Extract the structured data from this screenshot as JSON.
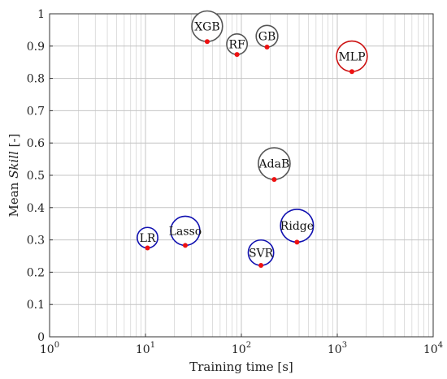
{
  "chart_data": {
    "type": "scatter",
    "title": "",
    "xlabel": "Training time [s]",
    "ylabel_prefix": "Mean ",
    "ylabel_italic": "Skill",
    "ylabel_suffix": " [-]",
    "xscale": "log",
    "xlim": [
      1,
      10000
    ],
    "ylim": [
      0,
      1
    ],
    "grid": true,
    "x_ticks": [
      {
        "value": 1,
        "base": "10",
        "exp": "0"
      },
      {
        "value": 10,
        "base": "10",
        "exp": "1"
      },
      {
        "value": 100,
        "base": "10",
        "exp": "2"
      },
      {
        "value": 1000,
        "base": "10",
        "exp": "3"
      },
      {
        "value": 10000,
        "base": "10",
        "exp": "4"
      }
    ],
    "y_ticks": [
      "0",
      "0.1",
      "0.2",
      "0.3",
      "0.4",
      "0.5",
      "0.6",
      "0.7",
      "0.8",
      "0.9",
      "1"
    ],
    "colors": {
      "linear_models": "#1010b0",
      "tree_models": "#555555",
      "neural_net": "#cc1111",
      "point": "#ee1111"
    },
    "points": [
      {
        "label": "LR",
        "x": 10.5,
        "y": 0.275,
        "size": 0.55,
        "color": "#1010b0"
      },
      {
        "label": "Lasso",
        "x": 26,
        "y": 0.283,
        "size": 0.78,
        "color": "#1010b0"
      },
      {
        "label": "SVR",
        "x": 160,
        "y": 0.221,
        "size": 0.68,
        "color": "#1010b0"
      },
      {
        "label": "Ridge",
        "x": 380,
        "y": 0.293,
        "size": 0.88,
        "color": "#1010b0"
      },
      {
        "label": "XGB",
        "x": 44,
        "y": 0.914,
        "size": 0.82,
        "color": "#555555"
      },
      {
        "label": "RF",
        "x": 90,
        "y": 0.874,
        "size": 0.55,
        "color": "#555555"
      },
      {
        "label": "GB",
        "x": 185,
        "y": 0.897,
        "size": 0.58,
        "color": "#555555"
      },
      {
        "label": "AdaB",
        "x": 220,
        "y": 0.487,
        "size": 0.85,
        "color": "#555555"
      },
      {
        "label": "MLP",
        "x": 1420,
        "y": 0.821,
        "size": 0.82,
        "color": "#cc1111"
      }
    ]
  }
}
